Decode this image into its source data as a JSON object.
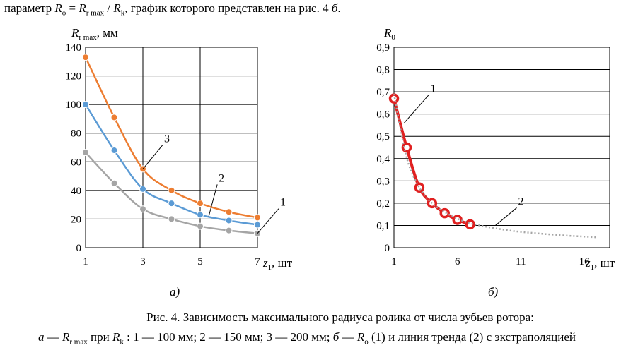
{
  "header_text": {
    "prefix": "параметр",
    "formula": "R",
    "formula_sub_o": "o",
    "eq": " = ",
    "formula_r": "R",
    "formula_sub_rmax": "r max",
    "slash": " / ",
    "formula_rk": "R",
    "formula_sub_k": "k",
    "suffix": ",  график которого представлен на рис. 4 ",
    "suffix_italic": "б",
    "suffix_end": "."
  },
  "chart_data": [
    {
      "type": "line",
      "ylabel_main": "R",
      "ylabel_sub": "r max",
      "ylabel_unit": ", мм",
      "xlabel_main": "z",
      "xlabel_sub": "1",
      "xlabel_unit": ", шт",
      "xlim": [
        1,
        7
      ],
      "ylim": [
        0,
        140
      ],
      "xticks": [
        1,
        3,
        5,
        7
      ],
      "yticks": [
        0,
        20,
        40,
        60,
        80,
        100,
        120,
        140
      ],
      "xtick_labels": [
        "1",
        "3",
        "5",
        "7"
      ],
      "ytick_labels": [
        "0",
        "20",
        "40",
        "60",
        "80",
        "100",
        "120",
        "140"
      ],
      "grid": true,
      "panel_label": "а)",
      "series": [
        {
          "id": "1",
          "color": "#a5a5a5",
          "x": [
            1,
            2,
            3,
            4,
            5,
            6,
            7
          ],
          "y": [
            66.5,
            45,
            27,
            20,
            15,
            12,
            10
          ]
        },
        {
          "id": "2",
          "color": "#5b9bd5",
          "x": [
            1,
            2,
            3,
            4,
            5,
            6,
            7
          ],
          "y": [
            100,
            68,
            41,
            31,
            23,
            19,
            16
          ]
        },
        {
          "id": "3",
          "color": "#ed7d31",
          "x": [
            1,
            2,
            3,
            4,
            5,
            6,
            7
          ],
          "y": [
            133,
            91,
            55,
            40,
            31,
            25,
            21
          ]
        }
      ],
      "callouts": [
        {
          "label": "1",
          "at_x": 7,
          "at_y": 10
        },
        {
          "label": "2",
          "at_x": 5.3,
          "at_y": 22
        },
        {
          "label": "3",
          "at_x": 3,
          "at_y": 55
        }
      ]
    },
    {
      "type": "line",
      "ylabel_main": "R",
      "ylabel_sub": "0",
      "xlabel_main": "z",
      "xlabel_sub": "1",
      "xlabel_unit": ", шт",
      "xlim": [
        1,
        18
      ],
      "ylim": [
        0,
        0.9
      ],
      "xticks": [
        1,
        6,
        11,
        16
      ],
      "yticks": [
        0,
        0.1,
        0.2,
        0.3,
        0.4,
        0.5,
        0.6,
        0.7,
        0.8,
        0.9
      ],
      "xtick_labels": [
        "1",
        "6",
        "11",
        "16"
      ],
      "ytick_labels": [
        "0",
        "0,1",
        "0,2",
        "0,3",
        "0,4",
        "0,5",
        "0,6",
        "0,7",
        "0,8",
        "0,9"
      ],
      "grid": "horizontal",
      "panel_label": "б)",
      "series": [
        {
          "id": "1",
          "color": "#e02020",
          "x": [
            1,
            2,
            3,
            4,
            5,
            6,
            7
          ],
          "y": [
            0.67,
            0.45,
            0.27,
            0.2,
            0.155,
            0.125,
            0.105
          ]
        },
        {
          "id": "2",
          "color": "#a5a5a5",
          "style": "dotted",
          "x": [
            1,
            2,
            3,
            4,
            5,
            6,
            7,
            8,
            9,
            10,
            11,
            12,
            13,
            14,
            15,
            16,
            17
          ],
          "y": [
            0.69,
            0.405,
            0.27,
            0.2,
            0.16,
            0.13,
            0.11,
            0.097,
            0.087,
            0.078,
            0.071,
            0.066,
            0.061,
            0.057,
            0.053,
            0.05,
            0.047
          ]
        }
      ],
      "callouts": [
        {
          "label": "1",
          "at_x": 1.8,
          "at_y": 0.56
        },
        {
          "label": "2",
          "at_x": 9,
          "at_y": 0.1
        }
      ]
    }
  ],
  "caption": {
    "line1": "Рис. 4. Зависимость максимального радиуса ролика от числа зубьев ротора:",
    "l2_a": "а",
    "l2_dash1": " — ",
    "l2_R1": "R",
    "l2_R1sub": "r max",
    "l2_pri": " при ",
    "l2_Rk": "R",
    "l2_Rksub": "k",
    "l2_rest": " : 1 — 100 мм; 2 — 150 мм; 3 — 200 мм; ",
    "l2_b": "б",
    "l2_dash2": " — ",
    "l2_Ro": "R",
    "l2_Rosub": "o",
    "l2_tail": " (1) и линия тренда (2) с экстраполяцией"
  }
}
